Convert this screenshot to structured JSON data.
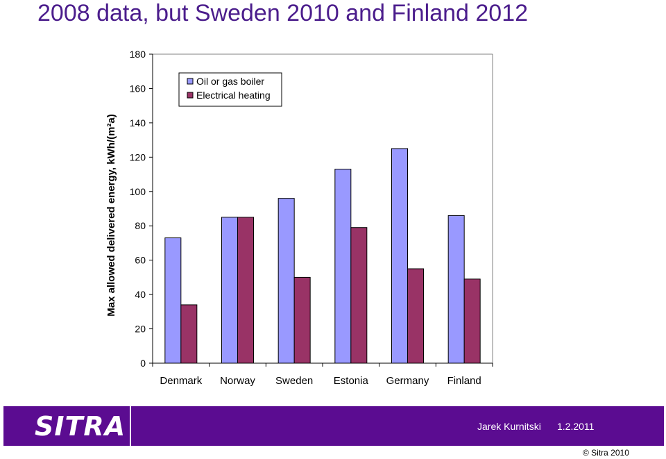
{
  "slide": {
    "title": "2008 data, but Sweden 2010 and Finland 2012"
  },
  "chart_data": {
    "type": "bar",
    "categories": [
      "Denmark",
      "Norway",
      "Sweden",
      "Estonia",
      "Germany",
      "Finland"
    ],
    "series": [
      {
        "name": "Oil or gas boiler",
        "values": [
          73,
          85,
          96,
          113,
          125,
          86
        ],
        "color": "#9999ff"
      },
      {
        "name": "Electrical heating",
        "values": [
          34,
          85,
          50,
          79,
          55,
          49
        ],
        "color": "#993366"
      }
    ],
    "ylabel": "Max allowed delivered energy, kWh/(m²a)",
    "xlabel": "",
    "ylim": [
      0,
      180
    ],
    "yticks": [
      "0",
      "20",
      "40",
      "60",
      "80",
      "100",
      "120",
      "140",
      "160",
      "180"
    ],
    "grid": false,
    "legend_position": "top-left"
  },
  "footer": {
    "logo_text": "SITRA",
    "author": "Jarek Kurnitski",
    "date": "1.2.2011",
    "copyright": "©  Sitra 2010"
  }
}
